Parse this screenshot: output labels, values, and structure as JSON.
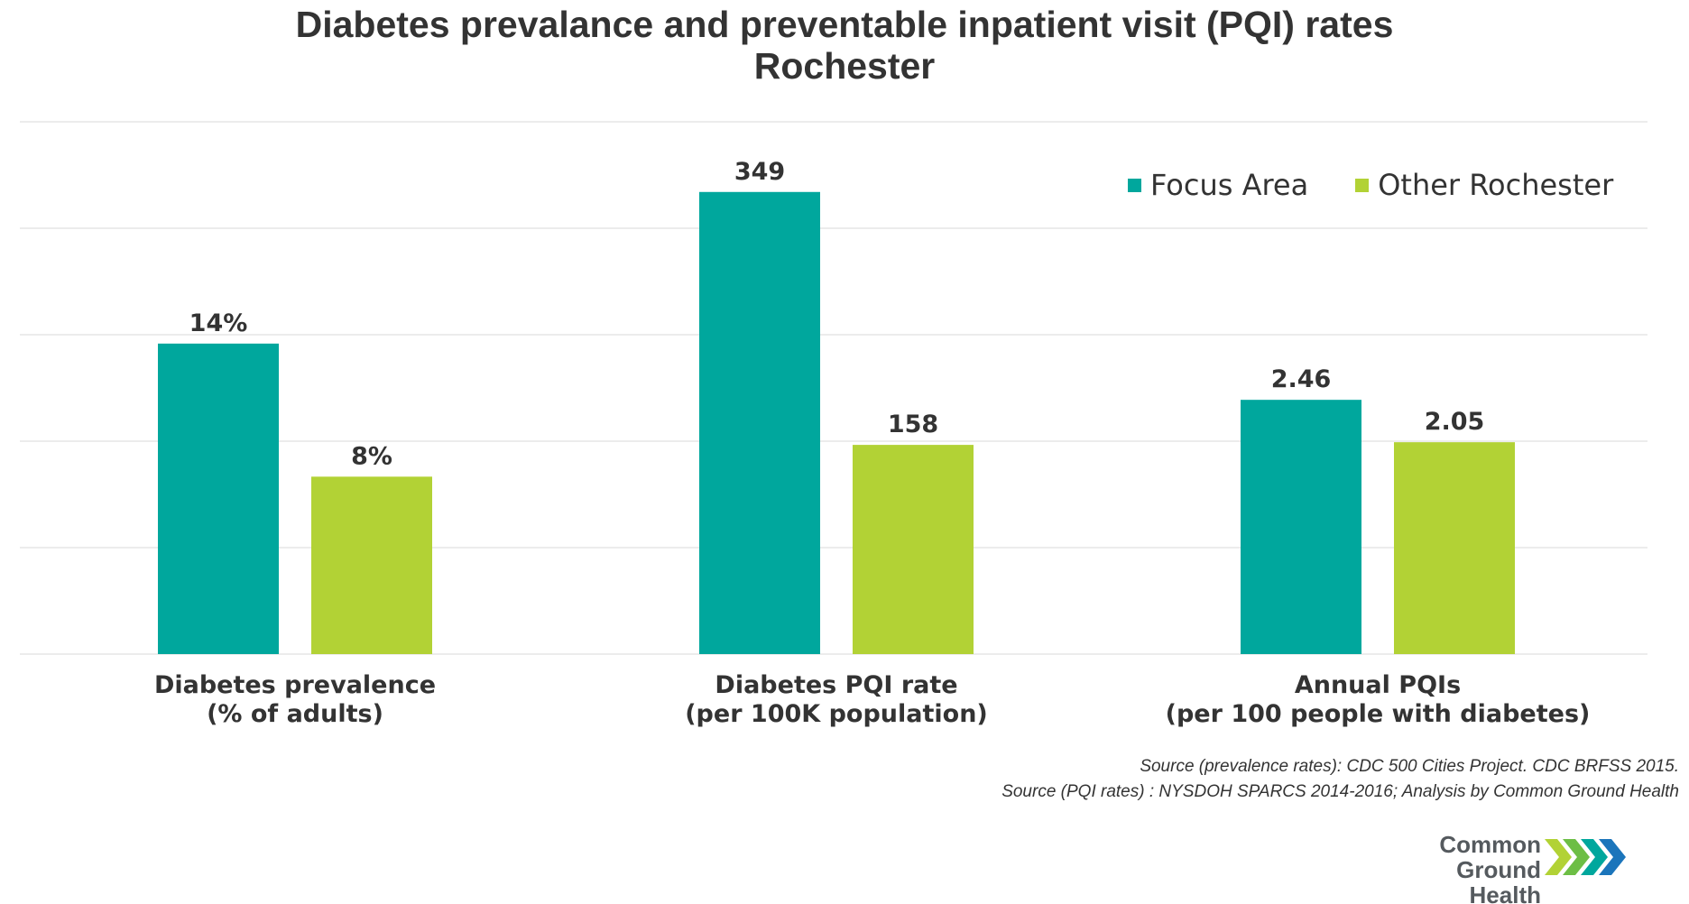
{
  "title": {
    "line1": "Diabetes prevalance and preventable inpatient visit (PQI) rates",
    "line2": "Rochester"
  },
  "legend": {
    "focus_label": "Focus Area",
    "other_label": "Other Rochester"
  },
  "colors": {
    "focus": "#00A79D",
    "other": "#B2D235",
    "grid": "#E0E0E0",
    "text": "#333333"
  },
  "chart_data": {
    "type": "bar",
    "title": "Diabetes prevalance and preventable inpatient visit (PQI) rates Rochester",
    "grid": true,
    "legend_position": "top-right",
    "note": "Each category group is drawn on its own independent scale; no y-axis tick labels shown.",
    "categories": [
      {
        "line1": "Diabetes prevalence",
        "line2": "(% of adults)"
      },
      {
        "line1": "Diabetes PQI rate",
        "line2": "(per 100K population)"
      },
      {
        "line1": "Annual PQIs",
        "line2": "(per 100 people with diabetes)"
      }
    ],
    "series": [
      {
        "name": "Focus Area",
        "values": [
          14,
          349,
          2.46
        ],
        "labels": [
          "14%",
          "349",
          "2.46"
        ]
      },
      {
        "name": "Other Rochester",
        "values": [
          8,
          158,
          2.05
        ],
        "labels": [
          "8%",
          "158",
          "2.05"
        ]
      }
    ],
    "group_scale_max": [
      24,
      402,
      5.15
    ]
  },
  "source": {
    "line1": "Source (prevalence rates): CDC 500 Cities Project. CDC BRFSS 2015.",
    "line2": "Source (PQI rates) : NYSDOH SPARCS 2014-2016; Analysis by Common Ground Health"
  },
  "logo": {
    "line1": "Common Ground",
    "line2": "Health"
  }
}
